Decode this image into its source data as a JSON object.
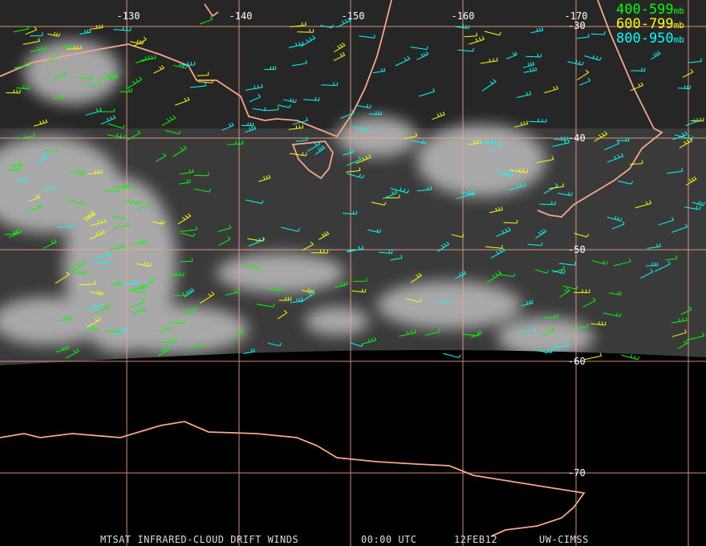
{
  "map": {
    "longitude_labels": [
      "-130",
      "-140",
      "-150",
      "-160",
      "-170"
    ],
    "latitude_labels": [
      "-30",
      "-40",
      "-50",
      "-60",
      "-70"
    ],
    "legend": [
      {
        "range": "400-599",
        "unit": "mb"
      },
      {
        "range": "600-799",
        "unit": "mb"
      },
      {
        "range": "800-950",
        "unit": "mb"
      }
    ],
    "footer": {
      "product": "MTSAT INFRARED-CLOUD DRIFT WINDS",
      "time": "00:00 UTC",
      "date": "12FEB12",
      "source": "UW-CIMSS"
    }
  }
}
